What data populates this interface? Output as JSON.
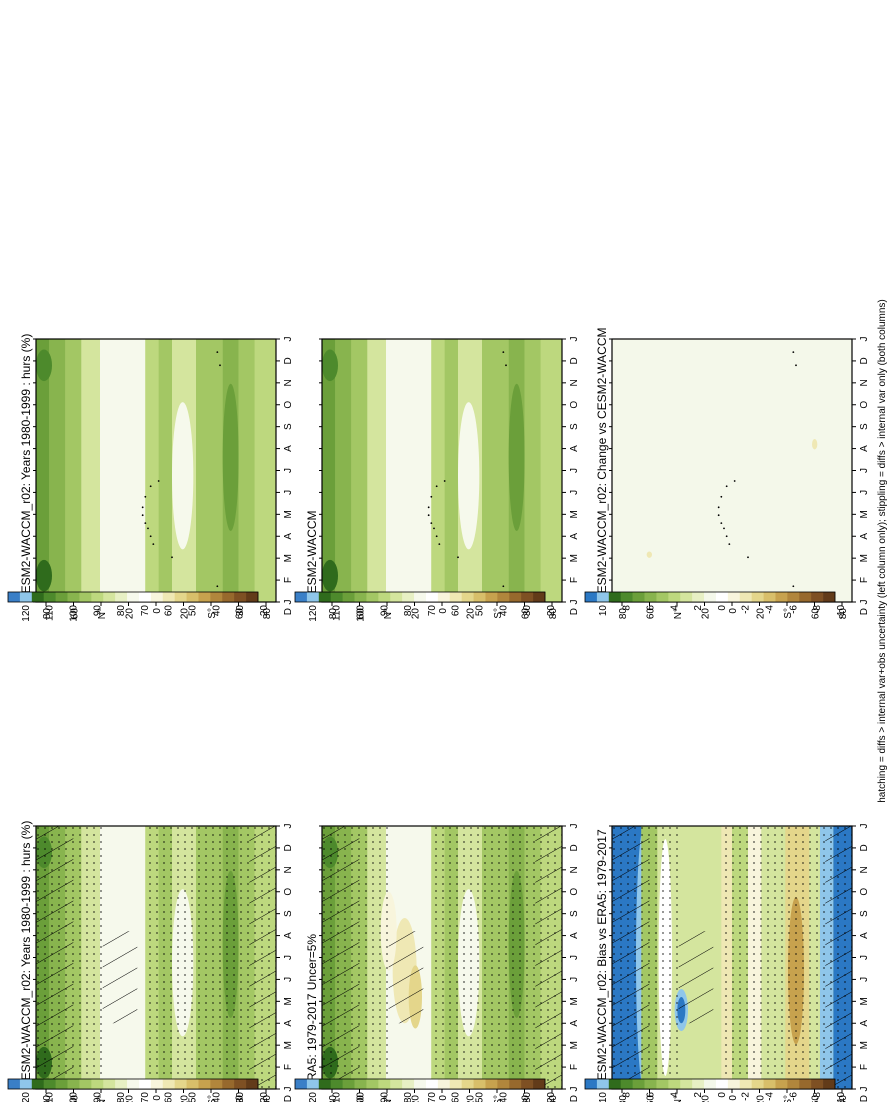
{
  "figure": {
    "footnote": "hatching = diffs > internal var+obs uncertainty (left column only); stippling = diffs > internal var only (both columns)"
  },
  "colorbars": {
    "abs_labels": [
      "120",
      "110",
      "100",
      "90",
      "80",
      "70",
      "60",
      "50",
      "40",
      "30",
      "20"
    ],
    "diff_labels": [
      "10",
      "8",
      "6",
      "4",
      "2",
      "0",
      "-2",
      "-4",
      "-6",
      "-8",
      "-10"
    ],
    "abs_colors": [
      "#3a7fc7",
      "#8fc6ea",
      "#2f6b1c",
      "#4d8a2c",
      "#6b9f3a",
      "#88b44e",
      "#a3c764",
      "#bdd87e",
      "#d4e59e",
      "#e7f0c4",
      "#f6f9ec",
      "#ffffff",
      "#f8f5dc",
      "#efe8b4",
      "#e4d68b",
      "#d8bf6a",
      "#c7a24e",
      "#b1863c",
      "#97692d",
      "#7e5023",
      "#623b19"
    ],
    "diff_colors": [
      "#2b78c4",
      "#8fc6ea",
      "#2f6b1c",
      "#4d8a2c",
      "#6b9f3a",
      "#88b44e",
      "#a3c764",
      "#bdd87e",
      "#d4e59e",
      "#e7f0c4",
      "#f4f8ea",
      "#ffffff",
      "#f8f5dc",
      "#efe8b4",
      "#e4d68b",
      "#d8bf6a",
      "#c7a24e",
      "#b1863c",
      "#97692d",
      "#7e5023",
      "#623b19"
    ]
  },
  "chart_data": [
    {
      "type": "heatmap",
      "title": "CESM2-WACCM_r02: Years 1980-1999 : hurs (%)",
      "x_ticks": [
        "J",
        "F",
        "M",
        "A",
        "M",
        "J",
        "J",
        "A",
        "S",
        "O",
        "N",
        "D",
        "J"
      ],
      "y_ticks": [
        "80",
        "60",
        "N°",
        "20",
        "0",
        "20",
        "S°",
        "60",
        "80"
      ],
      "y_axis_top": "D",
      "colorbar": "abs",
      "field": "abs_obs",
      "hatch": true,
      "stipple": true
    },
    {
      "type": "heatmap",
      "title": "CESM2-WACCM_r02: Years 1980-1999 : hurs (%)",
      "x_ticks": [
        "J",
        "F",
        "M",
        "A",
        "M",
        "J",
        "J",
        "A",
        "S",
        "O",
        "N",
        "D",
        "J"
      ],
      "y_ticks": [
        "80",
        "60",
        "N°",
        "20",
        "0",
        "20",
        "S°",
        "60",
        "80"
      ],
      "y_axis_top": "D",
      "colorbar": "abs",
      "field": "abs_model",
      "hatch": false,
      "stipple": false
    },
    {
      "type": "heatmap",
      "title": "ERA5: 1979-2017 Uncer=5%",
      "x_ticks": [
        "J",
        "F",
        "M",
        "A",
        "M",
        "J",
        "J",
        "A",
        "S",
        "O",
        "N",
        "D",
        "J"
      ],
      "y_ticks": [
        "80",
        "60",
        "N°",
        "20",
        "0",
        "20",
        "S°",
        "60",
        "80"
      ],
      "y_axis_top": "D",
      "colorbar": "abs",
      "field": "abs_era",
      "hatch": true,
      "stipple": true
    },
    {
      "type": "heatmap",
      "title": "CESM2-WACCM",
      "x_ticks": [
        "J",
        "F",
        "M",
        "A",
        "M",
        "J",
        "J",
        "A",
        "S",
        "O",
        "N",
        "D",
        "J"
      ],
      "y_ticks": [
        "80",
        "60",
        "N°",
        "20",
        "0",
        "20",
        "S°",
        "60",
        "80"
      ],
      "y_axis_top": "D",
      "colorbar": "abs",
      "field": "abs_model",
      "hatch": false,
      "stipple": false
    },
    {
      "type": "heatmap",
      "title": "CESM2-WACCM_r02: Bias vs ERA5: 1979-2017",
      "x_ticks": [
        "J",
        "F",
        "M",
        "A",
        "M",
        "J",
        "J",
        "A",
        "S",
        "O",
        "N",
        "D",
        "J"
      ],
      "y_ticks": [
        "80",
        "60",
        "N°",
        "20",
        "0",
        "20",
        "S°",
        "60",
        "80"
      ],
      "y_axis_top": "D",
      "colorbar": "diff",
      "field": "bias",
      "hatch": true,
      "stipple": true
    },
    {
      "type": "heatmap",
      "title": "CESM2-WACCM_r02: Change vs CESM2-WACCM",
      "x_ticks": [
        "J",
        "F",
        "M",
        "A",
        "M",
        "J",
        "J",
        "A",
        "S",
        "O",
        "N",
        "D",
        "J"
      ],
      "y_ticks": [
        "80",
        "60",
        "N°",
        "20",
        "0",
        "20",
        "S°",
        "60",
        "80"
      ],
      "y_axis_top": "D",
      "colorbar": "diff",
      "field": "change",
      "hatch": false,
      "stipple": false
    }
  ]
}
